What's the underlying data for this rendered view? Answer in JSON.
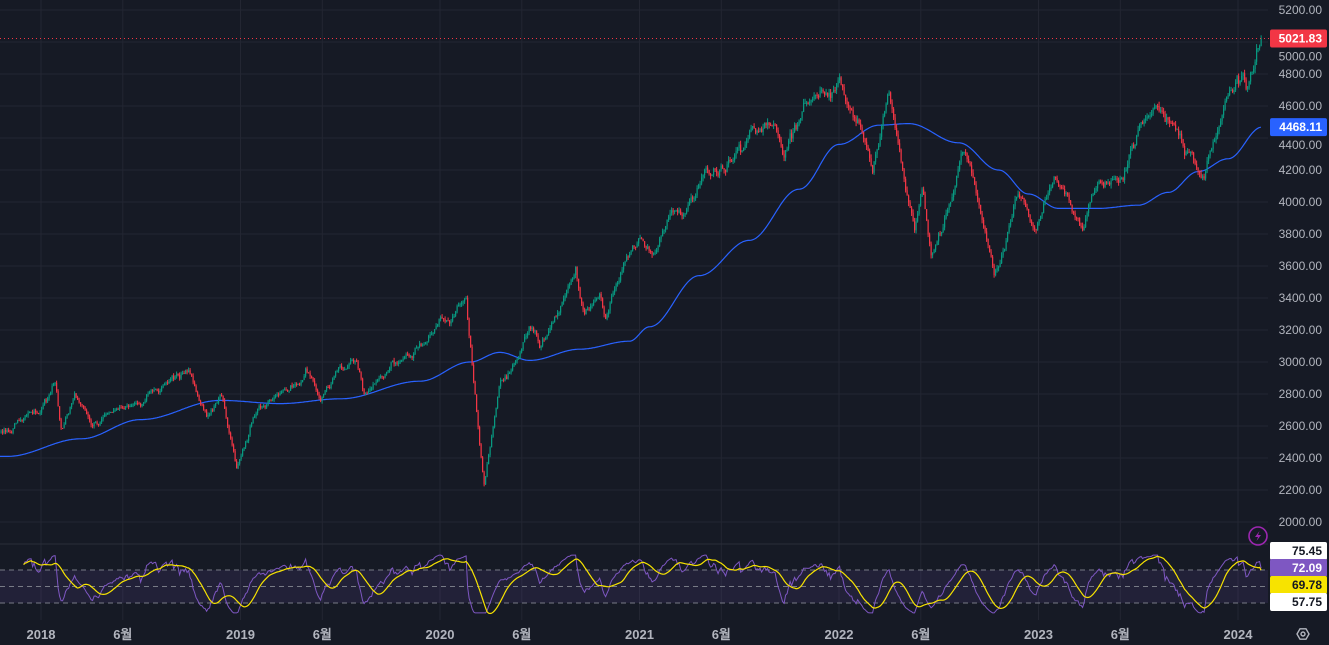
{
  "chart_data": {
    "type": "candlestick",
    "title": "",
    "colors": {
      "up": "#089981",
      "down": "#f23645",
      "ma": "#2962ff",
      "rsi": "#7e57c2",
      "rsi_ma": "#f7e300",
      "last_price": "#f23645",
      "background": "#161a25",
      "grid": "#232632"
    },
    "price_keypoints": [
      [
        2017.83,
        2560
      ],
      [
        2017.92,
        2650
      ],
      [
        2018.0,
        2690
      ],
      [
        2018.07,
        2872
      ],
      [
        2018.1,
        2590
      ],
      [
        2018.17,
        2780
      ],
      [
        2018.25,
        2600
      ],
      [
        2018.33,
        2680
      ],
      [
        2018.42,
        2740
      ],
      [
        2018.5,
        2720
      ],
      [
        2018.58,
        2820
      ],
      [
        2018.67,
        2900
      ],
      [
        2018.74,
        2940
      ],
      [
        2018.79,
        2760
      ],
      [
        2018.83,
        2650
      ],
      [
        2018.9,
        2800
      ],
      [
        2018.98,
        2350
      ],
      [
        2019.08,
        2700
      ],
      [
        2019.17,
        2790
      ],
      [
        2019.25,
        2840
      ],
      [
        2019.33,
        2950
      ],
      [
        2019.4,
        2750
      ],
      [
        2019.5,
        2950
      ],
      [
        2019.57,
        3020
      ],
      [
        2019.62,
        2830
      ],
      [
        2019.75,
        2980
      ],
      [
        2019.83,
        3050
      ],
      [
        2019.92,
        3150
      ],
      [
        2020.0,
        3250
      ],
      [
        2020.05,
        3230
      ],
      [
        2020.13,
        3390
      ],
      [
        2020.22,
        2220
      ],
      [
        2020.3,
        2870
      ],
      [
        2020.4,
        3050
      ],
      [
        2020.45,
        3230
      ],
      [
        2020.5,
        3100
      ],
      [
        2020.58,
        3280
      ],
      [
        2020.68,
        3570
      ],
      [
        2020.72,
        3280
      ],
      [
        2020.8,
        3450
      ],
      [
        2020.83,
        3270
      ],
      [
        2020.92,
        3630
      ],
      [
        2021.0,
        3750
      ],
      [
        2021.08,
        3720
      ],
      [
        2021.17,
        3900
      ],
      [
        2021.25,
        3990
      ],
      [
        2021.33,
        4190
      ],
      [
        2021.42,
        4200
      ],
      [
        2021.5,
        4300
      ],
      [
        2021.58,
        4400
      ],
      [
        2021.67,
        4530
      ],
      [
        2021.72,
        4300
      ],
      [
        2021.83,
        4600
      ],
      [
        2021.9,
        4700
      ],
      [
        2021.96,
        4650
      ],
      [
        2022.0,
        4800
      ],
      [
        2022.12,
        4400
      ],
      [
        2022.17,
        4200
      ],
      [
        2022.25,
        4630
      ],
      [
        2022.38,
        3850
      ],
      [
        2022.42,
        4100
      ],
      [
        2022.46,
        3650
      ],
      [
        2022.52,
        3850
      ],
      [
        2022.62,
        4300
      ],
      [
        2022.7,
        4050
      ],
      [
        2022.78,
        3500
      ],
      [
        2022.83,
        3700
      ],
      [
        2022.9,
        4080
      ],
      [
        2022.98,
        3800
      ],
      [
        2023.08,
        4180
      ],
      [
        2023.17,
        3950
      ],
      [
        2023.22,
        3820
      ],
      [
        2023.3,
        4130
      ],
      [
        2023.42,
        4180
      ],
      [
        2023.5,
        4450
      ],
      [
        2023.58,
        4600
      ],
      [
        2023.67,
        4500
      ],
      [
        2023.75,
        4300
      ],
      [
        2023.8,
        4200
      ],
      [
        2023.83,
        4110
      ],
      [
        2023.92,
        4560
      ],
      [
        2024.0,
        4770
      ],
      [
        2024.05,
        4720
      ],
      [
        2024.12,
        5022
      ]
    ],
    "moving_average_keypoints": [
      [
        2017.83,
        2410
      ],
      [
        2018.2,
        2520
      ],
      [
        2018.5,
        2640
      ],
      [
        2018.9,
        2760
      ],
      [
        2019.2,
        2740
      ],
      [
        2019.5,
        2770
      ],
      [
        2019.9,
        2880
      ],
      [
        2020.15,
        3000
      ],
      [
        2020.3,
        3060
      ],
      [
        2020.45,
        3010
      ],
      [
        2020.7,
        3080
      ],
      [
        2020.95,
        3130
      ],
      [
        2021.05,
        3220
      ],
      [
        2021.3,
        3540
      ],
      [
        2021.55,
        3760
      ],
      [
        2021.8,
        4080
      ],
      [
        2022.0,
        4360
      ],
      [
        2022.2,
        4480
      ],
      [
        2022.35,
        4490
      ],
      [
        2022.6,
        4370
      ],
      [
        2022.8,
        4200
      ],
      [
        2022.95,
        4050
      ],
      [
        2023.1,
        3960
      ],
      [
        2023.3,
        3960
      ],
      [
        2023.5,
        3980
      ],
      [
        2023.65,
        4060
      ],
      [
        2023.8,
        4190
      ],
      [
        2023.95,
        4270
      ],
      [
        2024.12,
        4468
      ]
    ],
    "y_ticks": [
      "5200.00",
      "5000.00",
      "4800.00",
      "4600.00",
      "4400.00",
      "4200.00",
      "4000.00",
      "3800.00",
      "3600.00",
      "3400.00",
      "3200.00",
      "3000.00",
      "2800.00",
      "2600.00",
      "2400.00",
      "2200.00",
      "2000.00"
    ],
    "x_ticks": [
      {
        "t": 2018.0,
        "label": "2018"
      },
      {
        "t": 2018.41,
        "label": "6월"
      },
      {
        "t": 2019.0,
        "label": "2019"
      },
      {
        "t": 2019.41,
        "label": "6월"
      },
      {
        "t": 2020.0,
        "label": "2020"
      },
      {
        "t": 2020.41,
        "label": "6월"
      },
      {
        "t": 2021.0,
        "label": "2021"
      },
      {
        "t": 2021.41,
        "label": "6월"
      },
      {
        "t": 2022.0,
        "label": "2022"
      },
      {
        "t": 2022.41,
        "label": "6월"
      },
      {
        "t": 2023.0,
        "label": "2023"
      },
      {
        "t": 2023.41,
        "label": "6월"
      },
      {
        "t": 2024.0,
        "label": "2024"
      }
    ],
    "ylim": [
      2000,
      5200
    ],
    "xlim": [
      2017.79,
      2024.2
    ],
    "last_price": {
      "value": 5021.83,
      "label": "5021.83"
    },
    "ma_value": {
      "value": 4468.11,
      "label": "4468.11"
    },
    "rsi": {
      "levels": [
        70,
        50,
        30
      ],
      "labels": [
        "75.45",
        "72.09",
        "69.78",
        "57.75"
      ],
      "rsi_value": 72.09,
      "rsi_ma_value": 69.78
    }
  }
}
